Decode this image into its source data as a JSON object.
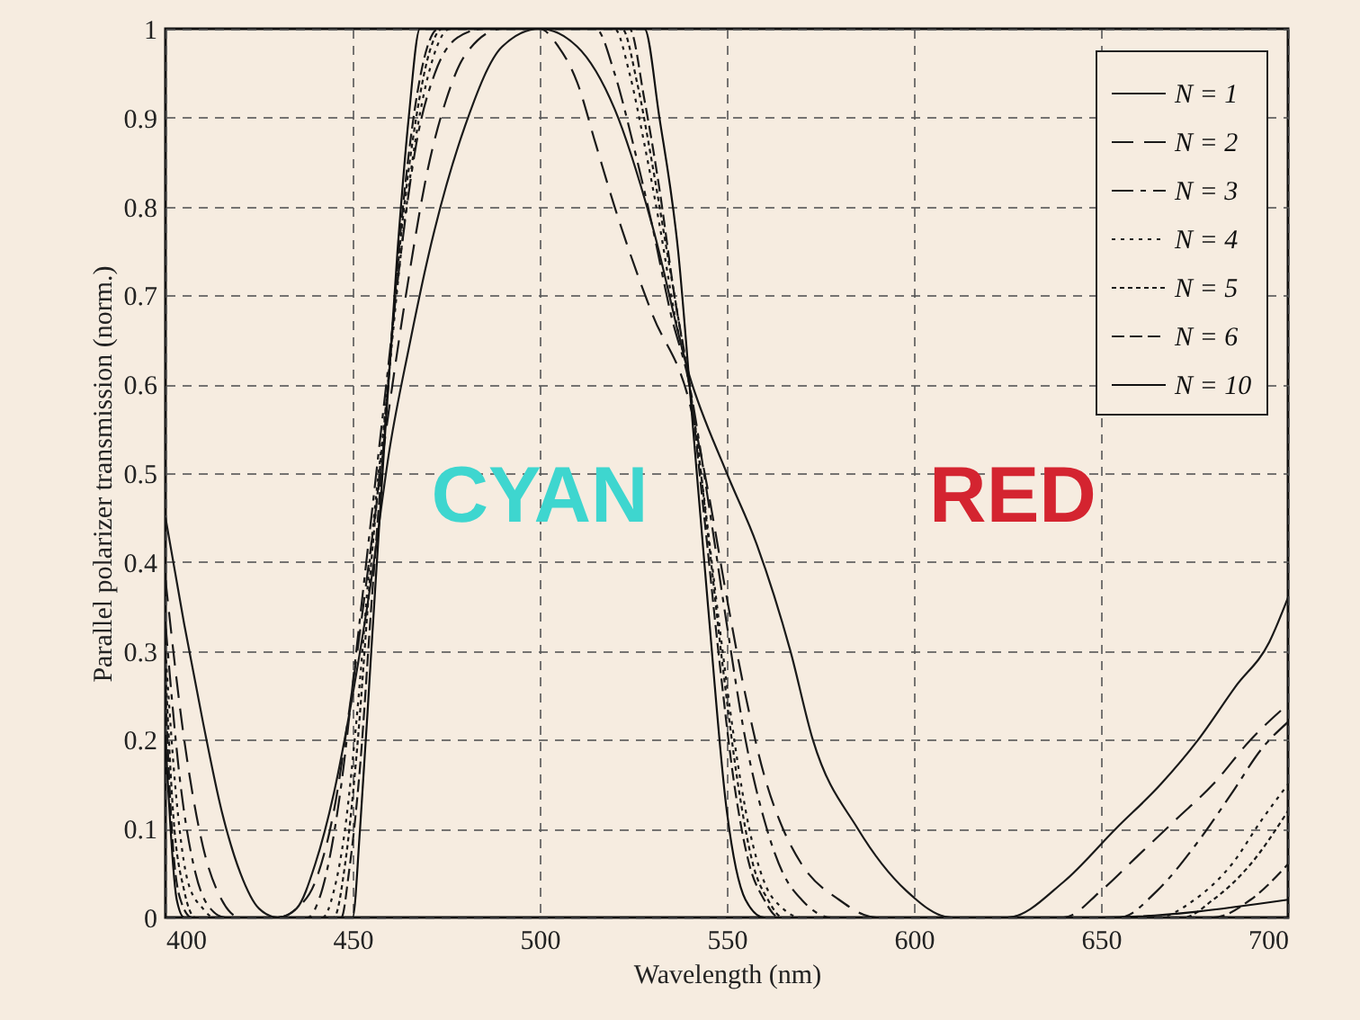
{
  "chart_data": {
    "type": "line",
    "xlabel": "Wavelength (nm)",
    "ylabel": "Parallel polarizer transmission (norm.)",
    "xlim": [
      400,
      700
    ],
    "xticks": [
      400,
      450,
      500,
      550,
      600,
      650,
      700
    ],
    "ylim": [
      0,
      1
    ],
    "yticks": [
      0,
      0.1,
      0.2,
      0.3,
      0.4,
      0.5,
      0.6,
      0.7,
      0.8,
      0.9,
      1
    ],
    "grid": true,
    "legend": "top right",
    "annotations": [
      "CYAN",
      "RED"
    ],
    "series": [
      {
        "name": "N = 1",
        "color": "#1a1a1a",
        "line_style": "solid",
        "x": [
          400,
          405,
          410,
          415,
          420,
          425,
          430,
          435,
          440,
          445,
          450,
          455,
          460,
          465,
          470,
          480,
          490,
          500,
          510,
          520,
          530,
          540,
          550,
          558,
          567,
          573,
          585,
          598,
          610,
          625,
          640,
          654,
          666,
          676,
          686,
          695,
          700
        ],
        "values": [
          0.45,
          0.33,
          0.22,
          0.12,
          0.05,
          0.01,
          0,
          0.01,
          0.06,
          0.14,
          0.25,
          0.38,
          0.53,
          0.64,
          0.74,
          0.89,
          0.98,
          1,
          0.98,
          0.91,
          0.78,
          0.61,
          0.5,
          0.42,
          0.3,
          0.2,
          0.1,
          0.03,
          0,
          0,
          0.04,
          0.1,
          0.15,
          0.2,
          0.26,
          0.31,
          0.36
        ]
      },
      {
        "name": "N = 2",
        "color": "#1a1a1a",
        "line_style": "dashed",
        "x": [
          400,
          405,
          410,
          415,
          420,
          430,
          435,
          440,
          445,
          450,
          455,
          460,
          465,
          470,
          475,
          480,
          490,
          500,
          505,
          510,
          515,
          520,
          530,
          540,
          545,
          550,
          555,
          560,
          565,
          570,
          580,
          590,
          640,
          650,
          660,
          670,
          680,
          690,
          700
        ],
        "values": [
          0.38,
          0.2,
          0.08,
          0.02,
          0,
          0,
          0.01,
          0.04,
          0.12,
          0.26,
          0.42,
          0.58,
          0.72,
          0.84,
          0.92,
          0.97,
          1,
          1,
          0.98,
          0.94,
          0.87,
          0.8,
          0.68,
          0.58,
          0.48,
          0.36,
          0.25,
          0.16,
          0.1,
          0.06,
          0.02,
          0,
          0,
          0.03,
          0.07,
          0.11,
          0.15,
          0.2,
          0.24
        ]
      },
      {
        "name": "N = 3",
        "color": "#1a1a1a",
        "line_style": "dashdot",
        "x": [
          400,
          404,
          408,
          412,
          416,
          438,
          441,
          444,
          447,
          451,
          455,
          459,
          463,
          467,
          472,
          478,
          485,
          515,
          520,
          525,
          530,
          535,
          540,
          545,
          550,
          555,
          560,
          565,
          570,
          578,
          655,
          665,
          675,
          685,
          693,
          700
        ],
        "values": [
          0.33,
          0.15,
          0.05,
          0.01,
          0,
          0,
          0.02,
          0.07,
          0.15,
          0.3,
          0.45,
          0.6,
          0.75,
          0.87,
          0.95,
          0.99,
          1,
          1,
          0.95,
          0.87,
          0.78,
          0.68,
          0.6,
          0.47,
          0.33,
          0.2,
          0.11,
          0.05,
          0.02,
          0,
          0,
          0.03,
          0.08,
          0.14,
          0.19,
          0.22
        ]
      },
      {
        "name": "N = 4",
        "color": "#1a1a1a",
        "line_style": "dotted",
        "x": [
          400,
          403,
          406,
          410,
          413,
          442,
          445,
          448,
          451,
          455,
          459,
          463,
          467,
          471,
          476,
          520,
          524,
          528,
          532,
          536,
          540,
          544,
          548,
          552,
          556,
          560,
          565,
          570,
          665,
          675,
          685,
          693,
          700
        ],
        "values": [
          0.3,
          0.13,
          0.04,
          0.01,
          0,
          0,
          0.03,
          0.1,
          0.22,
          0.42,
          0.58,
          0.75,
          0.88,
          0.96,
          1,
          1,
          0.95,
          0.87,
          0.78,
          0.68,
          0.6,
          0.47,
          0.33,
          0.2,
          0.1,
          0.04,
          0.01,
          0,
          0,
          0.02,
          0.06,
          0.11,
          0.15
        ]
      },
      {
        "name": "N = 5",
        "color": "#1a1a1a",
        "line_style": "dotted",
        "x": [
          400,
          402,
          405,
          408,
          445,
          448,
          451,
          455,
          459,
          463,
          467,
          471,
          474,
          522,
          526,
          530,
          534,
          538,
          541,
          545,
          549,
          553,
          557,
          561,
          565,
          672,
          680,
          690,
          700
        ],
        "values": [
          0.28,
          0.12,
          0.03,
          0,
          0,
          0.06,
          0.18,
          0.4,
          0.58,
          0.77,
          0.9,
          0.98,
          1,
          1,
          0.94,
          0.85,
          0.75,
          0.65,
          0.57,
          0.43,
          0.28,
          0.15,
          0.06,
          0.02,
          0,
          0,
          0.02,
          0.06,
          0.12
        ]
      },
      {
        "name": "N = 6",
        "color": "#1a1a1a",
        "line_style": "dashed",
        "x": [
          400,
          402,
          404,
          407,
          447,
          449,
          452,
          455,
          459,
          463,
          467,
          470,
          473,
          524,
          528,
          532,
          536,
          540,
          544,
          548,
          552,
          556,
          560,
          564,
          680,
          690,
          700
        ],
        "values": [
          0.25,
          0.08,
          0.02,
          0,
          0,
          0.05,
          0.17,
          0.35,
          0.57,
          0.78,
          0.92,
          0.98,
          1,
          1,
          0.92,
          0.82,
          0.7,
          0.6,
          0.45,
          0.29,
          0.15,
          0.06,
          0.02,
          0,
          0,
          0.02,
          0.06
        ]
      },
      {
        "name": "N = 10",
        "color": "#111111",
        "line_style": "solid",
        "x": [
          400,
          403,
          405,
          450,
          452,
          455,
          458,
          462,
          465,
          468,
          528,
          532,
          537,
          541,
          545,
          550,
          555,
          560,
          650,
          700
        ],
        "values": [
          0.2,
          0.02,
          0,
          0,
          0.1,
          0.3,
          0.5,
          0.75,
          0.9,
          1,
          1,
          0.9,
          0.75,
          0.55,
          0.35,
          0.12,
          0.02,
          0,
          0,
          0.02
        ]
      }
    ]
  }
}
